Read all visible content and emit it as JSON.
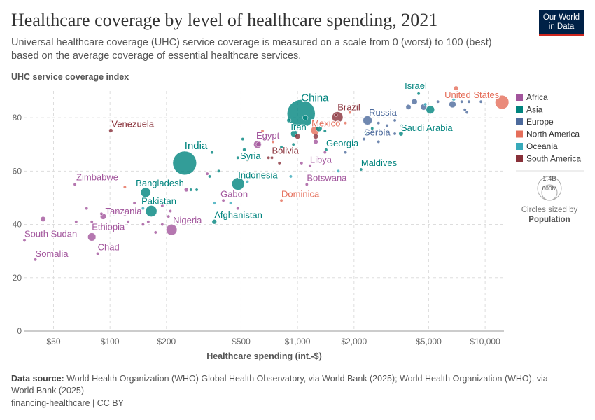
{
  "title": "Healthcare coverage by level of healthcare spending, 2021",
  "subtitle": "Universal healthcare coverage (UHC) service coverage is measured on a scale from 0 (worst) to 100 (best) based on the average coverage of essential healthcare services.",
  "logo": {
    "line1": "Our World",
    "line2": "in Data"
  },
  "footer": {
    "source_label": "Data source:",
    "source_text": "World Health Organization (WHO) Global Health Observatory, via World Bank (2025); World Health Organization (WHO), via World Bank (2025)",
    "license": "financing-healthcare | CC BY"
  },
  "chart_data": {
    "type": "scatter",
    "title": "Healthcare coverage by level of healthcare spending, 2021",
    "xlabel": "Healthcare spending (int.-$)",
    "ylabel": "UHC service coverage index",
    "x_scale": "log",
    "xlim": [
      35,
      12600
    ],
    "ylim": [
      0,
      90
    ],
    "x_ticks": [
      50,
      100,
      200,
      500,
      1000,
      2000,
      5000,
      10000
    ],
    "x_tick_labels": [
      "$50",
      "$100",
      "$200",
      "$500",
      "$1,000",
      "$2,000",
      "$5,000",
      "$10,000"
    ],
    "y_ticks": [
      0,
      20,
      40,
      60,
      80
    ],
    "y_tick_labels": [
      "0",
      "20",
      "40",
      "60",
      "80"
    ],
    "grid": true,
    "legend_placement": "right",
    "legend": [
      {
        "name": "Africa",
        "color": "#a2559c"
      },
      {
        "name": "Asia",
        "color": "#00847e"
      },
      {
        "name": "Europe",
        "color": "#4c6a9c"
      },
      {
        "name": "North America",
        "color": "#e56e5a"
      },
      {
        "name": "Oceania",
        "color": "#38aaba"
      },
      {
        "name": "South America",
        "color": "#883039"
      }
    ],
    "size_legend": {
      "title": "Circles sized by",
      "variable": "Population",
      "values": [
        "1.4B",
        "600M"
      ]
    },
    "labeled_points": [
      {
        "name": "China",
        "continent": "Asia",
        "x": 1045,
        "y": 81.5,
        "pop": 1400
      },
      {
        "name": "India",
        "continent": "Asia",
        "x": 250,
        "y": 63,
        "pop": 1000
      },
      {
        "name": "Indonesia",
        "continent": "Asia",
        "x": 482,
        "y": 55.2,
        "pop": 275
      },
      {
        "name": "Pakistan",
        "continent": "Asia",
        "x": 166,
        "y": 45,
        "pop": 230
      },
      {
        "name": "Bangladesh",
        "continent": "Asia",
        "x": 155,
        "y": 52,
        "pop": 170
      },
      {
        "name": "Nigeria",
        "continent": "Africa",
        "x": 213,
        "y": 38,
        "pop": 215
      },
      {
        "name": "Ethiopia",
        "continent": "Africa",
        "x": 80,
        "y": 35.3,
        "pop": 120
      },
      {
        "name": "Brazil",
        "continent": "South America",
        "x": 1633,
        "y": 80.2,
        "pop": 214
      },
      {
        "name": "United States",
        "continent": "North America",
        "x": 12300,
        "y": 85.8,
        "pop": 335
      },
      {
        "name": "Mexico",
        "continent": "North America",
        "x": 1240,
        "y": 75.2,
        "pop": 127
      },
      {
        "name": "Russia",
        "continent": "Europe",
        "x": 2360,
        "y": 79,
        "pop": 145
      },
      {
        "name": "Iran",
        "continent": "Asia",
        "x": 960,
        "y": 74,
        "pop": 88
      },
      {
        "name": "Egypt",
        "continent": "Africa",
        "x": 612,
        "y": 70,
        "pop": 110
      },
      {
        "name": "Venezuela",
        "continent": "South America",
        "x": 101,
        "y": 75.2,
        "pop": 28
      },
      {
        "name": "Zimbabwe",
        "continent": "Africa",
        "x": 65,
        "y": 55,
        "pop": 16
      },
      {
        "name": "South Sudan",
        "continent": "Africa",
        "x": 35,
        "y": 34,
        "pop": 11
      },
      {
        "name": "Somalia",
        "continent": "Africa",
        "x": 40,
        "y": 26.8,
        "pop": 17
      },
      {
        "name": "Chad",
        "continent": "Africa",
        "x": 86,
        "y": 29,
        "pop": 17
      },
      {
        "name": "Tanzania",
        "continent": "Africa",
        "x": 92,
        "y": 43,
        "pop": 63
      },
      {
        "name": "Gabon",
        "continent": "Africa",
        "x": 402,
        "y": 49,
        "pop": 2.3
      },
      {
        "name": "Afghanistan",
        "continent": "Asia",
        "x": 360,
        "y": 41,
        "pop": 40
      },
      {
        "name": "Syria",
        "continent": "Asia",
        "x": 520,
        "y": 68,
        "pop": 21
      },
      {
        "name": "Bolivia",
        "continent": "South America",
        "x": 730,
        "y": 65,
        "pop": 12
      },
      {
        "name": "Dominica",
        "continent": "North America",
        "x": 820,
        "y": 49,
        "pop": 0.07
      },
      {
        "name": "Libya",
        "continent": "Africa",
        "x": 1165,
        "y": 62,
        "pop": 7
      },
      {
        "name": "Botswana",
        "continent": "Africa",
        "x": 1120,
        "y": 55,
        "pop": 2.6
      },
      {
        "name": "Georgia",
        "continent": "Asia",
        "x": 1420,
        "y": 68,
        "pop": 3.7
      },
      {
        "name": "Maldives",
        "continent": "Asia",
        "x": 2180,
        "y": 60.6,
        "pop": 0.5
      },
      {
        "name": "Serbia",
        "continent": "Europe",
        "x": 2260,
        "y": 72,
        "pop": 6.8
      },
      {
        "name": "Saudi Arabia",
        "continent": "Asia",
        "x": 3560,
        "y": 74,
        "pop": 36
      },
      {
        "name": "Israel",
        "continent": "Asia",
        "x": 4420,
        "y": 89,
        "pop": 9
      }
    ],
    "other_points": [
      {
        "continent": "Asia",
        "x": 5100,
        "y": 83,
        "pop": 125
      },
      {
        "continent": "Europe",
        "x": 4700,
        "y": 84,
        "pop": 67
      },
      {
        "continent": "Europe",
        "x": 6700,
        "y": 85,
        "pop": 83
      },
      {
        "continent": "Europe",
        "x": 4200,
        "y": 86,
        "pop": 59
      },
      {
        "continent": "Europe",
        "x": 3900,
        "y": 84,
        "pop": 47
      },
      {
        "continent": "Europe",
        "x": 7500,
        "y": 86,
        "pop": 10
      },
      {
        "continent": "Europe",
        "x": 8200,
        "y": 86,
        "pop": 8
      },
      {
        "continent": "Europe",
        "x": 9500,
        "y": 86,
        "pop": 5
      },
      {
        "continent": "Europe",
        "x": 7800,
        "y": 83,
        "pop": 6
      },
      {
        "continent": "Europe",
        "x": 8000,
        "y": 82,
        "pop": 5
      },
      {
        "continent": "Europe",
        "x": 5600,
        "y": 86,
        "pop": 11
      },
      {
        "continent": "Europe",
        "x": 3300,
        "y": 79,
        "pop": 10
      },
      {
        "continent": "Europe",
        "x": 2700,
        "y": 78,
        "pop": 9
      },
      {
        "continent": "Europe",
        "x": 3000,
        "y": 77,
        "pop": 4
      },
      {
        "continent": "Europe",
        "x": 2000,
        "y": 70,
        "pop": 3
      },
      {
        "continent": "Europe",
        "x": 2700,
        "y": 71,
        "pop": 2
      },
      {
        "continent": "Europe",
        "x": 3300,
        "y": 74,
        "pop": 4
      },
      {
        "continent": "Europe",
        "x": 1800,
        "y": 67,
        "pop": 2
      },
      {
        "continent": "Oceania",
        "x": 6800,
        "y": 87,
        "pop": 26
      },
      {
        "continent": "Oceania",
        "x": 4800,
        "y": 85,
        "pop": 5
      },
      {
        "continent": "North America",
        "x": 7000,
        "y": 91,
        "pop": 38
      },
      {
        "continent": "Asia",
        "x": 3600,
        "y": 77,
        "pop": 5
      },
      {
        "continent": "Asia",
        "x": 2500,
        "y": 76,
        "pop": 4
      },
      {
        "continent": "Asia",
        "x": 2300,
        "y": 74,
        "pop": 3
      },
      {
        "continent": "Asia",
        "x": 1300,
        "y": 76,
        "pop": 70
      },
      {
        "continent": "Asia",
        "x": 900,
        "y": 79,
        "pop": 33
      },
      {
        "continent": "Asia",
        "x": 1100,
        "y": 80,
        "pop": 50
      },
      {
        "continent": "Asia",
        "x": 820,
        "y": 69,
        "pop": 5
      },
      {
        "continent": "Asia",
        "x": 510,
        "y": 72,
        "pop": 2
      },
      {
        "continent": "Asia",
        "x": 480,
        "y": 65,
        "pop": 4
      },
      {
        "continent": "Asia",
        "x": 350,
        "y": 67,
        "pop": 10
      },
      {
        "continent": "Asia",
        "x": 380,
        "y": 60,
        "pop": 6
      },
      {
        "continent": "Asia",
        "x": 340,
        "y": 58,
        "pop": 2
      },
      {
        "continent": "Asia",
        "x": 290,
        "y": 53,
        "pop": 17
      },
      {
        "continent": "Asia",
        "x": 270,
        "y": 53,
        "pop": 2
      },
      {
        "continent": "Asia",
        "x": 105,
        "y": 44,
        "pop": 5
      },
      {
        "continent": "Asia",
        "x": 950,
        "y": 70,
        "pop": 8
      },
      {
        "continent": "Asia",
        "x": 1400,
        "y": 75,
        "pop": 10
      },
      {
        "continent": "Africa",
        "x": 620,
        "y": 70,
        "pop": 45
      },
      {
        "continent": "Africa",
        "x": 330,
        "y": 59,
        "pop": 5
      },
      {
        "continent": "Africa",
        "x": 480,
        "y": 46,
        "pop": 2
      },
      {
        "continent": "Africa",
        "x": 255,
        "y": 53,
        "pop": 30
      },
      {
        "continent": "Africa",
        "x": 190,
        "y": 40,
        "pop": 4
      },
      {
        "continent": "Africa",
        "x": 205,
        "y": 43,
        "pop": 12
      },
      {
        "continent": "Africa",
        "x": 210,
        "y": 45,
        "pop": 3
      },
      {
        "continent": "Africa",
        "x": 190,
        "y": 47,
        "pop": 2
      },
      {
        "continent": "Africa",
        "x": 135,
        "y": 48,
        "pop": 12
      },
      {
        "continent": "Africa",
        "x": 120,
        "y": 44,
        "pop": 30
      },
      {
        "continent": "Africa",
        "x": 110,
        "y": 45,
        "pop": 6
      },
      {
        "continent": "Africa",
        "x": 80,
        "y": 41,
        "pop": 5
      },
      {
        "continent": "Africa",
        "x": 66,
        "y": 41,
        "pop": 3
      },
      {
        "continent": "Africa",
        "x": 75,
        "y": 46,
        "pop": 3
      },
      {
        "continent": "Africa",
        "x": 90,
        "y": 44,
        "pop": 3
      },
      {
        "continent": "Africa",
        "x": 150,
        "y": 40,
        "pop": 6
      },
      {
        "continent": "Africa",
        "x": 175,
        "y": 37,
        "pop": 3
      },
      {
        "continent": "Africa",
        "x": 44,
        "y": 42,
        "pop": 48
      },
      {
        "continent": "Africa",
        "x": 160,
        "y": 41,
        "pop": 5
      },
      {
        "continent": "Africa",
        "x": 125,
        "y": 41,
        "pop": 12
      },
      {
        "continent": "Africa",
        "x": 1050,
        "y": 63,
        "pop": 2
      },
      {
        "continent": "Africa",
        "x": 1250,
        "y": 71,
        "pop": 37
      },
      {
        "continent": "Africa",
        "x": 1400,
        "y": 67,
        "pop": 2
      },
      {
        "continent": "South America",
        "x": 1000,
        "y": 73,
        "pop": 50
      },
      {
        "continent": "South America",
        "x": 1600,
        "y": 81,
        "pop": 19
      },
      {
        "continent": "South America",
        "x": 800,
        "y": 63,
        "pop": 7
      },
      {
        "continent": "South America",
        "x": 1250,
        "y": 73,
        "pop": 45
      },
      {
        "continent": "South America",
        "x": 700,
        "y": 65,
        "pop": 4
      },
      {
        "continent": "North America",
        "x": 650,
        "y": 75,
        "pop": 5
      },
      {
        "continent": "North America",
        "x": 740,
        "y": 71,
        "pop": 10
      },
      {
        "continent": "North America",
        "x": 1800,
        "y": 78,
        "pop": 4
      },
      {
        "continent": "North America",
        "x": 1900,
        "y": 82,
        "pop": 3
      },
      {
        "continent": "North America",
        "x": 120,
        "y": 54,
        "pop": 11
      },
      {
        "continent": "North America",
        "x": 540,
        "y": 64,
        "pop": 10
      },
      {
        "continent": "Oceania",
        "x": 360,
        "y": 48,
        "pop": 1
      },
      {
        "continent": "Oceania",
        "x": 440,
        "y": 48,
        "pop": 0.5
      },
      {
        "continent": "Oceania",
        "x": 1650,
        "y": 60,
        "pop": 0.3
      },
      {
        "continent": "Oceania",
        "x": 540,
        "y": 56,
        "pop": 0.3
      },
      {
        "continent": "Oceania",
        "x": 920,
        "y": 58,
        "pop": 0.5
      },
      {
        "continent": "Oceania",
        "x": 150,
        "y": 46,
        "pop": 10
      },
      {
        "continent": "Oceania",
        "x": 100,
        "y": 46,
        "pop": 1
      }
    ]
  }
}
